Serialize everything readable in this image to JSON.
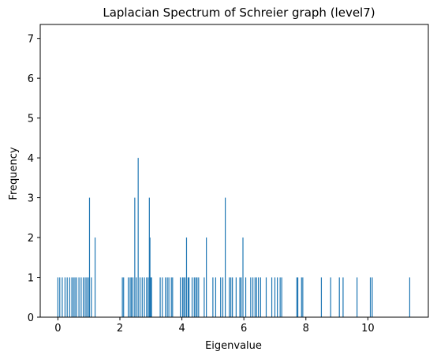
{
  "chart_data": {
    "type": "bar",
    "title": "Laplacian Spectrum of Schreier graph (level7)",
    "xlabel": "Eigenvalue",
    "ylabel": "Frequency",
    "xlim": [
      -0.57,
      11.95
    ],
    "ylim": [
      0,
      7.35
    ],
    "xticks": [
      0,
      2,
      4,
      6,
      8,
      10
    ],
    "yticks": [
      0,
      1,
      2,
      3,
      4,
      5,
      6,
      7
    ],
    "bar_color": "#1f77b4",
    "grid": false,
    "eigenvalues": [
      0.0,
      0.06,
      0.14,
      0.23,
      0.3,
      0.38,
      0.45,
      0.5,
      0.55,
      0.6,
      0.68,
      0.75,
      0.82,
      0.88,
      0.93,
      0.98,
      1.02,
      1.08,
      1.2,
      2.08,
      2.12,
      2.27,
      2.33,
      2.37,
      2.42,
      2.48,
      2.53,
      2.59,
      2.65,
      2.72,
      2.79,
      2.86,
      2.91,
      2.95,
      2.97,
      2.99,
      3.02,
      3.3,
      3.37,
      3.47,
      3.53,
      3.58,
      3.66,
      3.7,
      3.95,
      4.02,
      4.06,
      4.1,
      4.15,
      4.2,
      4.23,
      4.33,
      4.4,
      4.45,
      4.49,
      4.54,
      4.72,
      4.79,
      5.0,
      5.09,
      5.25,
      5.32,
      5.4,
      5.53,
      5.58,
      5.63,
      5.75,
      5.87,
      5.91,
      5.97,
      6.06,
      6.22,
      6.29,
      6.36,
      6.41,
      6.47,
      6.54,
      6.72,
      6.9,
      7.0,
      7.08,
      7.17,
      7.22,
      7.71,
      7.74,
      7.86,
      7.9,
      8.5,
      8.8,
      9.08,
      9.2,
      9.65,
      10.08,
      10.14,
      11.35
    ],
    "frequencies": [
      1,
      1,
      1,
      1,
      1,
      1,
      1,
      1,
      1,
      1,
      1,
      1,
      1,
      1,
      1,
      1,
      3,
      1,
      2,
      1,
      1,
      1,
      1,
      1,
      1,
      3,
      1,
      4,
      1,
      1,
      1,
      1,
      1,
      3,
      2,
      1,
      1,
      1,
      1,
      1,
      1,
      1,
      1,
      1,
      1,
      1,
      1,
      1,
      2,
      1,
      1,
      1,
      1,
      1,
      1,
      1,
      1,
      2,
      1,
      1,
      1,
      1,
      3,
      1,
      1,
      1,
      1,
      1,
      1,
      2,
      1,
      1,
      1,
      1,
      1,
      1,
      1,
      1,
      1,
      1,
      1,
      1,
      1,
      1,
      1,
      1,
      1,
      1,
      1,
      1,
      1,
      1,
      1,
      1,
      1
    ]
  }
}
